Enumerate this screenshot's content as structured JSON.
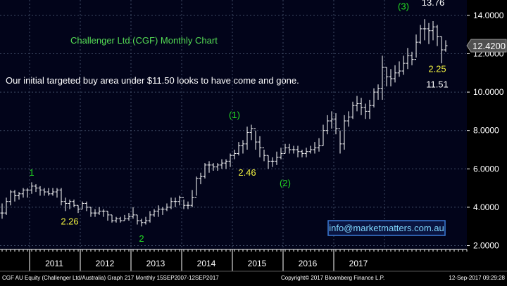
{
  "chart_data": {
    "type": "ohlc",
    "title": "Challenger Ltd (CGF) Monthly Chart",
    "subtitle": "Our initial targeted buy area under $11.50 looks to have come and gone.",
    "watermark": "info@marketmatters.com.au",
    "footer": {
      "left": "CGF AU Equity (Challenger Ltd/Australia) Graph 217  Monthly 15SEP2007-12SEP2017",
      "center": "Copyright© 2017 Bloomberg Finance L.P.",
      "right": "12-Sep-2017 09:29:28"
    },
    "ylim": [
      1.8,
      14.8
    ],
    "yticks": [
      "14.0000",
      "12.0000",
      "10.0000",
      "8.0000",
      "6.0000",
      "4.0000",
      "2.0000"
    ],
    "ytick_values": [
      14,
      12,
      10,
      8,
      6,
      4,
      2
    ],
    "x_labels": [
      "2011",
      "2012",
      "2013",
      "2014",
      "2015",
      "2016",
      "2017"
    ],
    "x_start": "2010-06",
    "last_price_label": "12.4200",
    "last_price": 12.42,
    "bars": [
      [
        4.2,
        3.4,
        3.7
      ],
      [
        4.5,
        3.6,
        4.3
      ],
      [
        4.9,
        4.1,
        4.8
      ],
      [
        4.9,
        4.3,
        4.6
      ],
      [
        4.8,
        4.4,
        4.7
      ],
      [
        5.0,
        4.5,
        4.9
      ],
      [
        5.0,
        4.5,
        4.9
      ],
      [
        5.3,
        4.7,
        5.1
      ],
      [
        5.2,
        4.8,
        5.0
      ],
      [
        5.1,
        4.6,
        4.9
      ],
      [
        5.0,
        4.6,
        4.8
      ],
      [
        5.0,
        4.6,
        4.7
      ],
      [
        5.0,
        4.6,
        4.8
      ],
      [
        5.0,
        4.5,
        4.9
      ],
      [
        5.0,
        4.1,
        4.3
      ],
      [
        4.5,
        3.8,
        4.2
      ],
      [
        4.4,
        3.9,
        4.3
      ],
      [
        4.4,
        4.0,
        4.1
      ],
      [
        4.1,
        3.7,
        3.9
      ],
      [
        4.3,
        3.9,
        4.2
      ],
      [
        4.3,
        3.8,
        4.0
      ],
      [
        4.0,
        3.5,
        3.7
      ],
      [
        3.9,
        3.5,
        3.7
      ],
      [
        4.0,
        3.6,
        3.8
      ],
      [
        3.9,
        3.5,
        3.8
      ],
      [
        3.8,
        3.3,
        3.6
      ],
      [
        3.6,
        3.2,
        3.3
      ],
      [
        3.5,
        3.2,
        3.4
      ],
      [
        3.5,
        3.2,
        3.3
      ],
      [
        3.6,
        3.3,
        3.4
      ],
      [
        3.7,
        3.3,
        3.5
      ],
      [
        4.0,
        3.4,
        3.6
      ],
      [
        3.6,
        3.1,
        3.3
      ],
      [
        3.4,
        3.0,
        3.2
      ],
      [
        3.5,
        3.1,
        3.3
      ],
      [
        3.8,
        3.2,
        3.6
      ],
      [
        3.9,
        3.5,
        3.8
      ],
      [
        4.1,
        3.5,
        3.9
      ],
      [
        4.0,
        3.6,
        3.9
      ],
      [
        4.2,
        3.8,
        4.0
      ],
      [
        4.5,
        3.9,
        4.3
      ],
      [
        4.5,
        4.0,
        4.3
      ],
      [
        4.6,
        4.1,
        4.5
      ],
      [
        4.4,
        3.9,
        4.1
      ],
      [
        4.3,
        3.9,
        4.1
      ],
      [
        4.9,
        4.0,
        4.5
      ],
      [
        5.6,
        4.6,
        5.5
      ],
      [
        5.8,
        5.2,
        5.6
      ],
      [
        6.3,
        5.5,
        6.2
      ],
      [
        6.4,
        5.8,
        6.2
      ],
      [
        6.3,
        5.9,
        6.1
      ],
      [
        6.3,
        5.9,
        6.2
      ],
      [
        6.5,
        6.0,
        6.3
      ],
      [
        6.5,
        6.0,
        6.4
      ],
      [
        6.8,
        6.1,
        6.7
      ],
      [
        7.0,
        6.5,
        6.8
      ],
      [
        7.4,
        6.7,
        7.2
      ],
      [
        7.5,
        6.8,
        7.3
      ],
      [
        8.2,
        7.0,
        7.9
      ],
      [
        8.3,
        7.5,
        8.1
      ],
      [
        8.0,
        7.0,
        7.4
      ],
      [
        7.7,
        6.6,
        7.1
      ],
      [
        7.0,
        6.4,
        6.7
      ],
      [
        6.7,
        6.0,
        6.4
      ],
      [
        6.6,
        6.1,
        6.4
      ],
      [
        6.9,
        6.2,
        6.6
      ],
      [
        7.1,
        6.5,
        6.8
      ],
      [
        7.3,
        6.8,
        7.1
      ],
      [
        7.3,
        6.8,
        7.0
      ],
      [
        7.2,
        6.8,
        7.0
      ],
      [
        7.2,
        6.6,
        6.9
      ],
      [
        7.0,
        6.6,
        6.8
      ],
      [
        7.1,
        6.6,
        6.9
      ],
      [
        7.2,
        6.8,
        7.0
      ],
      [
        7.4,
        6.8,
        7.1
      ],
      [
        7.6,
        6.9,
        7.2
      ],
      [
        8.3,
        7.2,
        8.0
      ],
      [
        8.8,
        7.8,
        8.5
      ],
      [
        9.0,
        8.1,
        8.6
      ],
      [
        8.9,
        7.8,
        8.1
      ],
      [
        8.0,
        6.8,
        7.3
      ],
      [
        8.8,
        7.0,
        8.5
      ],
      [
        9.0,
        8.2,
        8.7
      ],
      [
        9.5,
        8.6,
        9.3
      ],
      [
        9.8,
        9.0,
        9.4
      ],
      [
        9.7,
        8.8,
        9.2
      ],
      [
        9.4,
        8.6,
        9.0
      ],
      [
        9.6,
        8.6,
        9.3
      ],
      [
        10.2,
        9.2,
        10.0
      ],
      [
        10.4,
        9.6,
        10.2
      ],
      [
        11.9,
        9.6,
        11.3
      ],
      [
        11.3,
        10.3,
        10.8
      ],
      [
        11.2,
        10.3,
        10.7
      ],
      [
        11.4,
        10.5,
        11.0
      ],
      [
        11.6,
        10.8,
        11.1
      ],
      [
        11.9,
        10.9,
        11.5
      ],
      [
        12.3,
        11.2,
        11.9
      ],
      [
        12.1,
        11.4,
        11.7
      ],
      [
        13.0,
        11.8,
        12.6
      ],
      [
        13.5,
        12.5,
        13.3
      ],
      [
        13.8,
        12.7,
        13.3
      ],
      [
        13.6,
        12.5,
        13.2
      ],
      [
        13.7,
        12.7,
        13.4
      ],
      [
        13.5,
        12.4,
        12.9
      ],
      [
        12.9,
        11.5,
        12.2
      ],
      [
        12.7,
        12.1,
        12.42
      ]
    ],
    "annotations": [
      {
        "text": "1",
        "x": 7,
        "y": 5.65,
        "color": "#22dd22"
      },
      {
        "text": "2.26",
        "x": 16,
        "y": 3.1,
        "color": "#f0f040"
      },
      {
        "text": "2",
        "x": 33,
        "y": 2.2,
        "color": "#22dd22"
      },
      {
        "text": "(1)",
        "x": 55,
        "y": 8.65,
        "color": "#22dd22"
      },
      {
        "text": "2.46",
        "x": 58,
        "y": 5.65,
        "color": "#f0f040"
      },
      {
        "text": "(2)",
        "x": 67,
        "y": 5.1,
        "color": "#22dd22"
      },
      {
        "text": "(3)",
        "x": 95,
        "y": 14.3,
        "color": "#22dd22"
      },
      {
        "text": "13.76",
        "x": 102,
        "y": 14.5,
        "color": "#ffffff"
      },
      {
        "text": "2.25",
        "x": 103,
        "y": 11.05,
        "color": "#f0f040"
      },
      {
        "text": "11.51",
        "x": 103,
        "y": 10.25,
        "color": "#ffffff"
      }
    ],
    "colors": {
      "background": "#000000",
      "panel": "#02041a",
      "grid": "#3e4a64",
      "bars": "#ffffff",
      "title": "#55dd55",
      "subtitle": "#ffffff",
      "axis_text": "#ffffff",
      "price_box": "#4f4f4f",
      "footer_bg": "#000000",
      "footer_text": "#ffffff",
      "watermark_text": "#7fd8ff",
      "watermark_border": "#3b7bd6",
      "watermark_bg": "#0a1440"
    }
  }
}
